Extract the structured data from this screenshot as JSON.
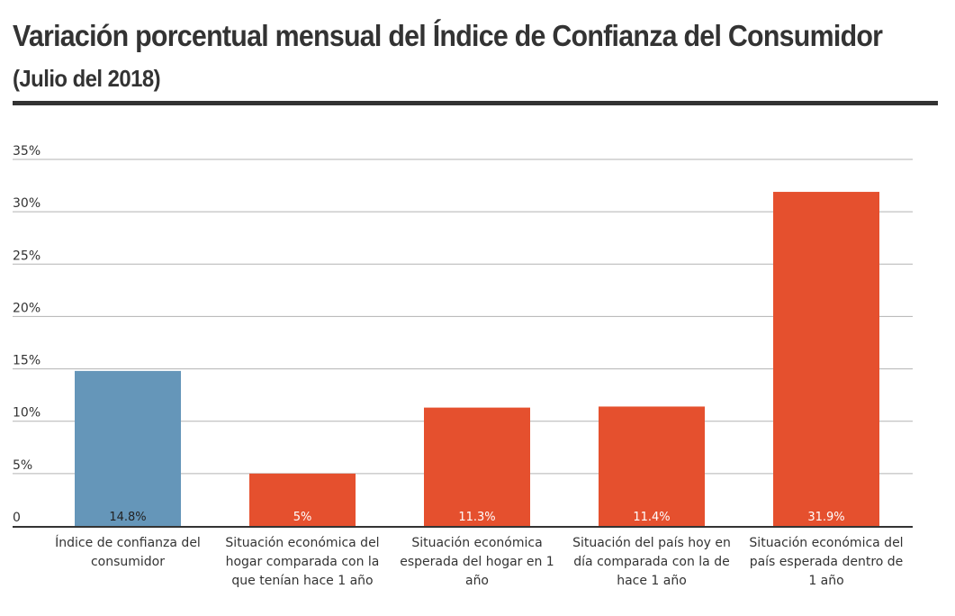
{
  "chart_data": {
    "type": "bar",
    "title": "Variación porcentual mensual del Índice de Confianza del Consumidor",
    "subtitle": "(Julio del 2018)",
    "categories": [
      "Índice de confianza del consumidor",
      "Situación económica del hogar comparada con la que tenían hace 1 año",
      "Situación económica esperada del hogar en 1 año",
      "Situación del país hoy en día comparada con la de hace 1 año",
      "Situación económica del país esperada dentro de 1 año"
    ],
    "values": [
      14.8,
      5,
      11.3,
      11.4,
      31.9
    ],
    "value_labels": [
      "14.8%",
      "5%",
      "11.3%",
      "11.4%",
      "31.9%"
    ],
    "bar_colors": [
      "#6596b9",
      "#e5502e",
      "#e5502e",
      "#e5502e",
      "#e5502e"
    ],
    "ylim": [
      0,
      35
    ],
    "yticks": [
      0,
      5,
      10,
      15,
      20,
      25,
      30,
      35
    ],
    "ytick_labels": [
      "0",
      "5%",
      "10%",
      "15%",
      "20%",
      "25%",
      "30%",
      "35%"
    ],
    "grid": true,
    "xlabel": "",
    "ylabel": ""
  }
}
